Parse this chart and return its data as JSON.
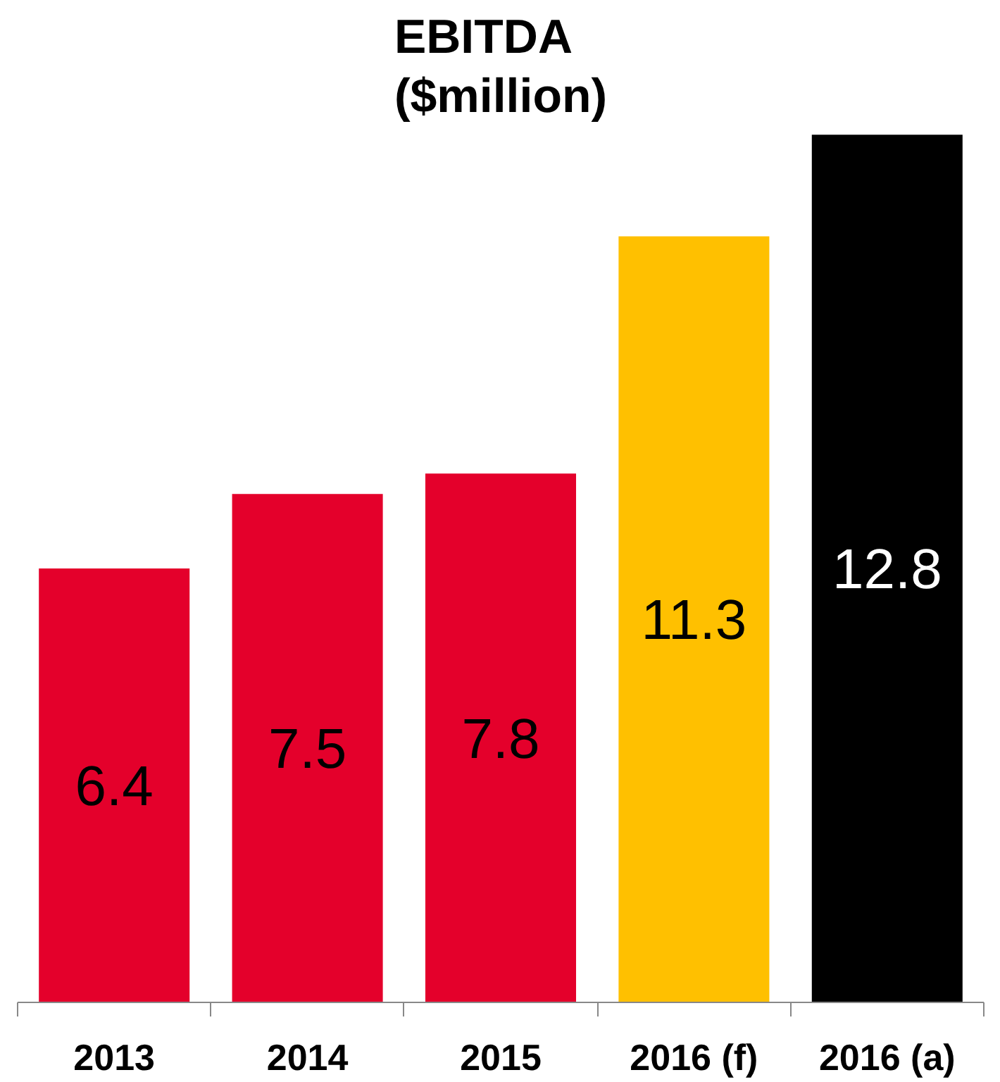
{
  "chart_data": {
    "type": "bar",
    "title": "EBITDA\n($million)",
    "categories": [
      "2013",
      "2014",
      "2015",
      "2016 (f)",
      "2016 (a)"
    ],
    "values": [
      6.4,
      7.5,
      7.8,
      11.3,
      12.8
    ],
    "colors": [
      "#e4002b",
      "#e4002b",
      "#e4002b",
      "#ffc000",
      "#000000"
    ],
    "data_labels": true
  }
}
